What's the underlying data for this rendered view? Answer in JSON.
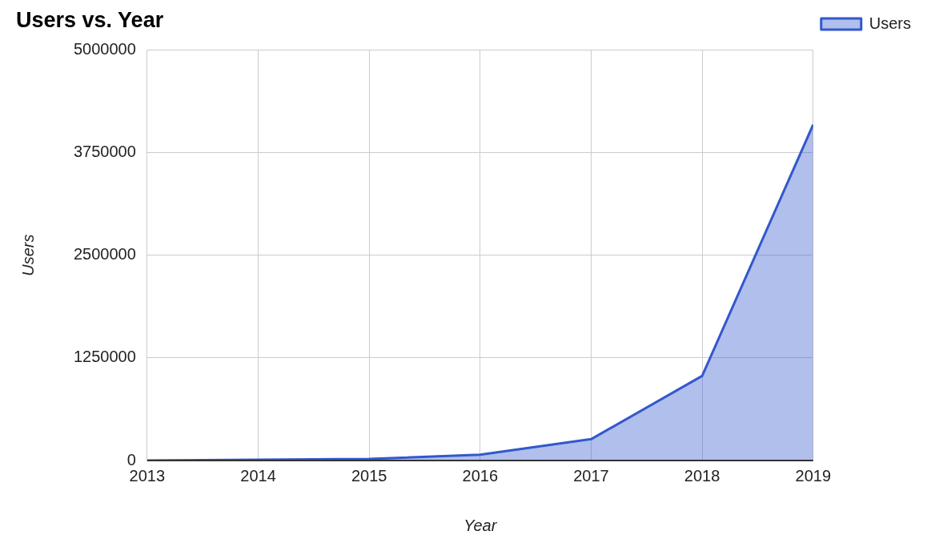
{
  "chart_data": {
    "type": "area",
    "title": "Users vs. Year",
    "xlabel": "Year",
    "ylabel": "Users",
    "x": [
      2013,
      2014,
      2015,
      2016,
      2017,
      2018,
      2019
    ],
    "series": [
      {
        "name": "Users",
        "color": "#3358cc",
        "values": [
          0,
          10000,
          20000,
          70000,
          260000,
          1030000,
          4090000
        ]
      }
    ],
    "xlim": [
      2013,
      2019
    ],
    "xticks": [
      2013,
      2014,
      2015,
      2016,
      2017,
      2018,
      2019
    ],
    "ylim": [
      0,
      5000000
    ],
    "yticks": [
      0,
      1250000,
      2500000,
      3750000,
      5000000
    ],
    "grid": true,
    "legend": "top right",
    "marker": "none",
    "line_style": "solid"
  }
}
